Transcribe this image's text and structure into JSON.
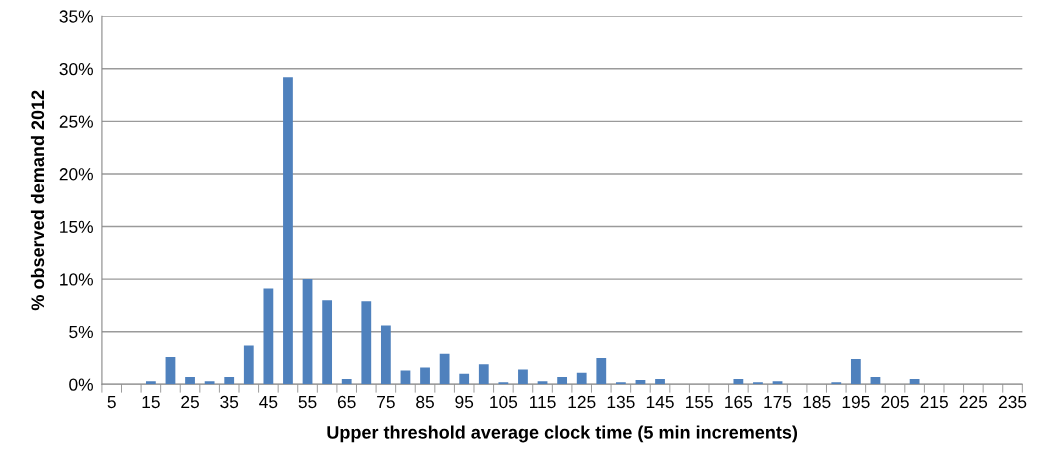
{
  "chart_data": {
    "type": "bar",
    "xlabel": "Upper threshold average clock time (5 min increments)",
    "ylabel": "% observed demand 2012",
    "categories": [
      "5",
      null,
      "15",
      null,
      "25",
      null,
      "35",
      null,
      "45",
      null,
      "55",
      null,
      "65",
      null,
      "75",
      null,
      "85",
      null,
      "95",
      null,
      "105",
      null,
      "115",
      null,
      "125",
      null,
      "135",
      null,
      "145",
      null,
      "155",
      null,
      "165",
      null,
      "175",
      null,
      "185",
      null,
      "195",
      null,
      "205",
      null,
      "215",
      null,
      "225",
      null,
      "235"
    ],
    "values": [
      0,
      0,
      0.3,
      2.6,
      0.7,
      0.3,
      0.7,
      3.7,
      9.1,
      29.2,
      10.0,
      8.0,
      0.5,
      7.9,
      5.6,
      1.3,
      1.6,
      2.9,
      1.0,
      1.9,
      0.2,
      1.4,
      0.3,
      0.7,
      1.1,
      2.5,
      0.2,
      0.4,
      0.5,
      0,
      0,
      0,
      0.5,
      0.2,
      0.3,
      0,
      0,
      0.2,
      2.4,
      0.7,
      0,
      0.5,
      0,
      0,
      0,
      0,
      0
    ],
    "color": "#4f81bd",
    "ylim": [
      0,
      35
    ],
    "yticks": [
      {
        "value": 0,
        "label": "0%"
      },
      {
        "value": 5,
        "label": "5%"
      },
      {
        "value": 10,
        "label": "10%"
      },
      {
        "value": 15,
        "label": "15%"
      },
      {
        "value": 20,
        "label": "20%"
      },
      {
        "value": 25,
        "label": "25%"
      },
      {
        "value": 30,
        "label": "30%"
      },
      {
        "value": 35,
        "label": "35%"
      }
    ],
    "grid": "y"
  }
}
